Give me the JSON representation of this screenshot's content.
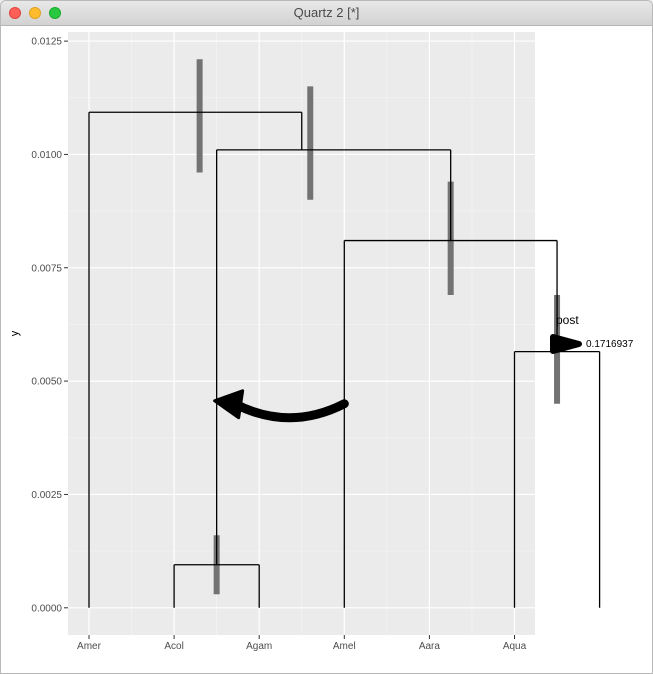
{
  "window": {
    "title": "Quartz 2 [*]"
  },
  "chart_data": {
    "type": "dendrogram",
    "title": "",
    "xlabel": "",
    "ylabel": "y",
    "ylim": [
      -0.0006,
      0.0127
    ],
    "y_ticks": [
      0.0,
      0.0025,
      0.005,
      0.0075,
      0.01,
      0.0125
    ],
    "y_tick_labels": [
      "0.0000",
      "0.0025",
      "0.0050",
      "0.0075",
      "0.0100",
      "0.0125"
    ],
    "x_categories": [
      "Amer",
      "Acol",
      "Agam",
      "Amel",
      "Aara",
      "Aqua"
    ],
    "x_minor_grid": true,
    "grid": true,
    "background": "#ebebeb",
    "tree_color": "#000000",
    "errorbar_color": "#737373",
    "segments": [
      {
        "x": 1,
        "y0": 0,
        "y1": 0.01093
      },
      {
        "x": 1,
        "x_end": 3.5,
        "y": 0.01093
      },
      {
        "x": 3.5,
        "y0": 0.01093,
        "y1": 0.0101
      },
      {
        "x": 2.5,
        "x_end": 5.25,
        "y": 0.0101
      },
      {
        "x": 2.5,
        "y0": 0.0101,
        "y1": 0.00095
      },
      {
        "x": 2,
        "x_end": 3,
        "y": 0.00095
      },
      {
        "x": 2,
        "y0": 0.00095,
        "y1": 0
      },
      {
        "x": 3,
        "y0": 0.00095,
        "y1": 0
      },
      {
        "x": 5.25,
        "y0": 0.0101,
        "y1": 0.0081
      },
      {
        "x": 4,
        "x_end": 6.5,
        "y": 0.0081
      },
      {
        "x": 4,
        "y0": 0.0081,
        "y1": 0
      },
      {
        "x": 6.5,
        "y0": 0.0081,
        "y1": 0.00565
      },
      {
        "x": 6,
        "x_end": 7,
        "y": 0.00565
      },
      {
        "x": 6,
        "y0": 0.00565,
        "y1": 0
      },
      {
        "x": 7,
        "y0": 0.00565,
        "y1": 0
      }
    ],
    "node_intervals": [
      {
        "x": 2.3,
        "low": 0.0096,
        "high": 0.0121
      },
      {
        "x": 3.6,
        "low": 0.009,
        "high": 0.0115
      },
      {
        "x": 5.25,
        "low": 0.0069,
        "high": 0.0094
      },
      {
        "x": 6.5,
        "low": 0.0045,
        "high": 0.0069
      },
      {
        "x": 2.5,
        "low": 0.0003,
        "high": 0.0016
      }
    ],
    "migration_arrow": {
      "from_x": 4,
      "from_y": 0.0045,
      "to_x": 2.5,
      "to_y": 0.0045,
      "post": 0.1716937
    },
    "legend": {
      "title": "post",
      "entries": [
        "0.1716937"
      ],
      "position": "right"
    }
  }
}
